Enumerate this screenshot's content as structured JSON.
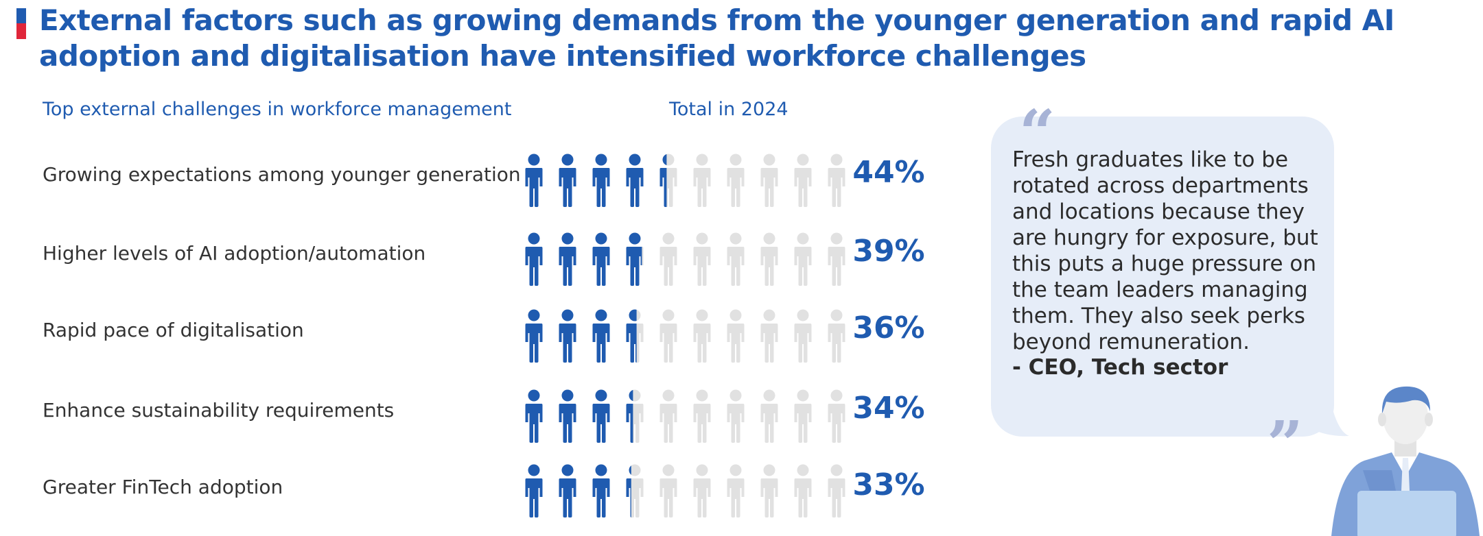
{
  "title": "External factors such as growing demands from the younger generation and rapid AI adoption and digitalisation have intensified workforce challenges",
  "colors": {
    "accent_blue": "#1f5bb0",
    "accent_red": "#e0263a",
    "icon_blue": "#1f5bb0",
    "icon_grey": "#e1e1e1",
    "bubble": "#e6edf8",
    "quote_mark": "#a7b3d6"
  },
  "chart_data": {
    "type": "pictograph",
    "title": "Top external challenges in workforce management",
    "column_header": "Total in 2024",
    "icons_per_row": 10,
    "unit": "%",
    "categories": [
      "Growing expectations among younger generation",
      "Higher levels of AI adoption/automation",
      "Rapid pace of digitalisation",
      "Enhance sustainability requirements",
      "Greater FinTech adoption"
    ],
    "values": [
      44,
      39,
      36,
      34,
      33
    ],
    "value_labels": [
      "44%",
      "39%",
      "36%",
      "34%",
      "33%"
    ]
  },
  "quote": {
    "text": "Fresh graduates like to be rotated across departments and locations because they are hungry for exposure, but this puts a huge pressure on the team leaders managing them. They also seek perks beyond remuneration.",
    "author": "- CEO, Tech sector",
    "open_mark": "“",
    "close_mark": "”"
  },
  "illustration": {
    "icon": "businessman-laptop-icon"
  }
}
